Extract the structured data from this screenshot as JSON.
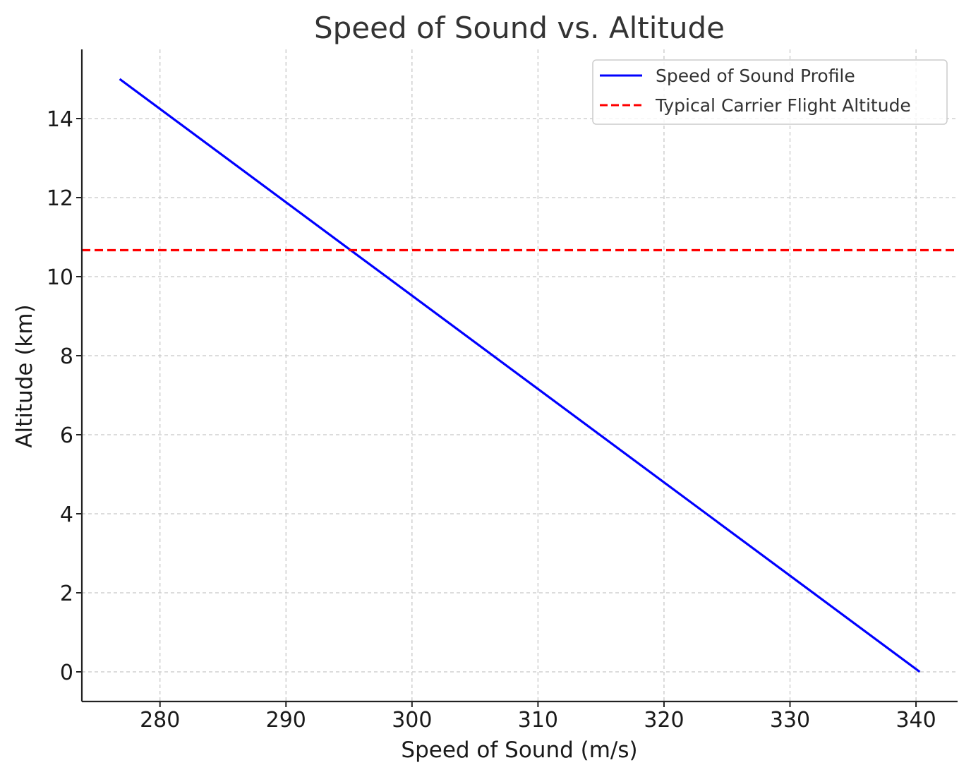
{
  "chart_data": {
    "type": "line",
    "title": "Speed of Sound vs. Altitude",
    "xlabel": "Speed of Sound (m/s)",
    "ylabel": "Altitude (km)",
    "xlim": [
      273.8,
      343.3
    ],
    "ylim": [
      -0.75,
      15.75
    ],
    "x_ticks": [
      280,
      290,
      300,
      310,
      320,
      330,
      340
    ],
    "y_ticks": [
      0,
      2,
      4,
      6,
      8,
      10,
      12,
      14
    ],
    "grid": true,
    "legend_position": "top-right",
    "series": [
      {
        "name": "Speed of Sound Profile",
        "color": "#0000ff",
        "style": "solid",
        "x": [
          340.3,
          276.8
        ],
        "y": [
          0,
          15
        ]
      },
      {
        "name": "Typical Carrier Flight Altitude",
        "color": "#ff0000",
        "style": "dashed",
        "type": "hline",
        "y": 10.67
      }
    ]
  }
}
